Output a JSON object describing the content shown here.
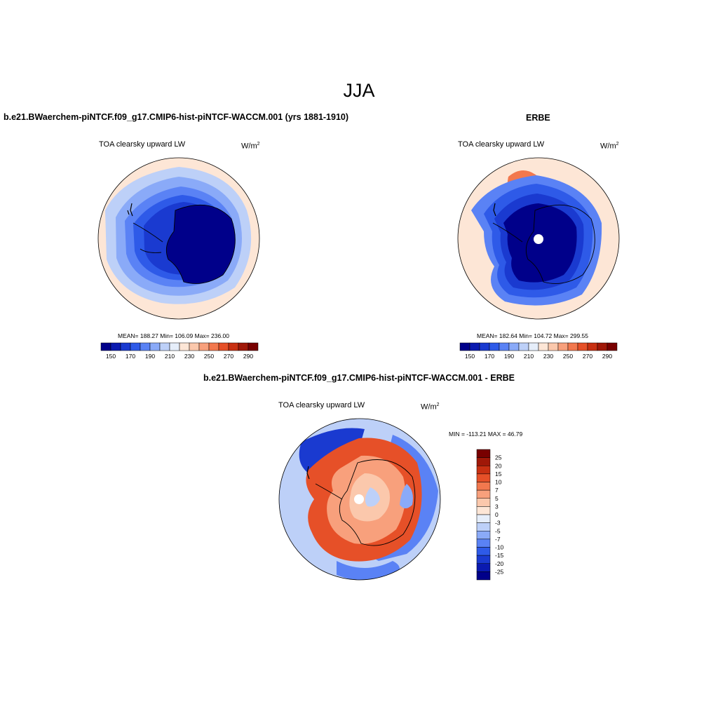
{
  "page": {
    "title": "JJA"
  },
  "panels": {
    "model": {
      "title": "b.e21.BWaerchem-piNTCF.f09_g17.CMIP6-hist-piNTCF-WACCM.001 (yrs 1881-1910)",
      "variable": "TOA clearsky upward LW",
      "units_base": "W/m",
      "units_exp": "2",
      "stats": "MEAN= 188.27  Min= 106.09  Max= 236.00"
    },
    "obs": {
      "title": "ERBE",
      "variable": "TOA clearsky upward LW",
      "units_base": "W/m",
      "units_exp": "2",
      "stats": "MEAN= 182.64  Min= 104.72  Max= 299.55"
    },
    "diff": {
      "title": "b.e21.BWaerchem-piNTCF.f09_g17.CMIP6-hist-piNTCF-WACCM.001 - ERBE",
      "variable": "TOA clearsky upward LW",
      "units_base": "W/m",
      "units_exp": "2",
      "stats": "MIN = -113.21 MAX =  46.79"
    }
  },
  "chart_data": [
    {
      "type": "heatmap",
      "projection": "south polar stereographic",
      "title": "TOA clearsky upward LW",
      "colorbar": {
        "orientation": "horizontal",
        "levels": [
          150,
          160,
          170,
          180,
          190,
          200,
          210,
          220,
          230,
          240,
          250,
          260,
          270,
          280,
          290
        ],
        "tick_labels": [
          "150",
          "170",
          "190",
          "210",
          "230",
          "250",
          "270",
          "290"
        ],
        "colors": [
          "#00008a",
          "#0a1ab0",
          "#1a3ad0",
          "#2e5ae8",
          "#5a82f5",
          "#8aaaf8",
          "#bdd0f8",
          "#e6eefa",
          "#fde6d6",
          "#fbc8ac",
          "#f8a07c",
          "#f2784e",
          "#e65028",
          "#c83012",
          "#a01808",
          "#780000"
        ]
      },
      "mean": 188.27,
      "min": 106.09,
      "max": 236.0
    },
    {
      "type": "heatmap",
      "projection": "south polar stereographic",
      "title": "TOA clearsky upward LW",
      "colorbar": {
        "orientation": "horizontal",
        "levels": [
          150,
          160,
          170,
          180,
          190,
          200,
          210,
          220,
          230,
          240,
          250,
          260,
          270,
          280,
          290
        ],
        "tick_labels": [
          "150",
          "170",
          "190",
          "210",
          "230",
          "250",
          "270",
          "290"
        ],
        "colors": [
          "#00008a",
          "#0a1ab0",
          "#1a3ad0",
          "#2e5ae8",
          "#5a82f5",
          "#8aaaf8",
          "#bdd0f8",
          "#e6eefa",
          "#fde6d6",
          "#fbc8ac",
          "#f8a07c",
          "#f2784e",
          "#e65028",
          "#c83012",
          "#a01808",
          "#780000"
        ]
      },
      "mean": 182.64,
      "min": 104.72,
      "max": 299.55
    },
    {
      "type": "heatmap",
      "projection": "south polar stereographic",
      "title": "TOA clearsky upward LW",
      "colorbar": {
        "orientation": "vertical",
        "levels": [
          -25,
          -20,
          -15,
          -10,
          -7,
          -5,
          -3,
          0,
          3,
          5,
          7,
          10,
          15,
          20,
          25
        ],
        "tick_labels": [
          "25",
          "20",
          "15",
          "10",
          "7",
          "5",
          "3",
          "0",
          "-3",
          "-5",
          "-7",
          "-10",
          "-15",
          "-20",
          "-25"
        ],
        "colors_top_to_bottom": [
          "#780000",
          "#a01808",
          "#c83012",
          "#e65028",
          "#f2784e",
          "#f8a07c",
          "#fbc8ac",
          "#fde6d6",
          "#e6eefa",
          "#bdd0f8",
          "#8aaaf8",
          "#5a82f5",
          "#2e5ae8",
          "#1a3ad0",
          "#0a1ab0",
          "#00008a"
        ]
      },
      "min": -113.21,
      "max": 46.79
    }
  ]
}
